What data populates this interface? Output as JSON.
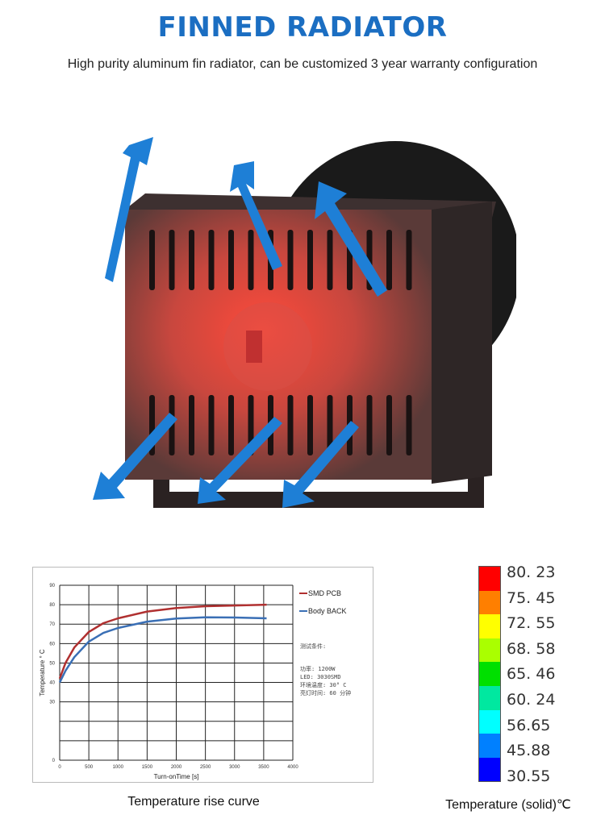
{
  "header": {
    "title": "FINNED RADIATOR",
    "subtitle": "High purity aluminum fin radiator, can be customized 3 year warranty configuration"
  },
  "colors": {
    "title": "#1b6ec2",
    "arrow": "#1e7fd6",
    "glow": "#ff3b2f",
    "body": "#3a2a2a"
  },
  "product_image": {
    "description_icons": [
      "airflow-arrow-icon"
    ]
  },
  "chart_data": {
    "type": "line",
    "title": "",
    "xlabel": "Turn-onTime [s]",
    "ylabel": "Temperature ° C",
    "xlim": [
      0,
      4000
    ],
    "ylim": [
      0,
      90
    ],
    "xticks": [
      0,
      500,
      1000,
      1500,
      2000,
      2500,
      3000,
      3500,
      4000
    ],
    "yticks": [
      0,
      30,
      40,
      50,
      60,
      70,
      80,
      90
    ],
    "grid": true,
    "legend": "right",
    "x": [
      0,
      100,
      250,
      500,
      750,
      1000,
      1500,
      2000,
      2500,
      3000,
      3550
    ],
    "series": [
      {
        "name": "SMD PCB",
        "color": "#b03030",
        "values": [
          42,
          50,
          58,
          66,
          70.5,
          73,
          76.5,
          78.3,
          79.2,
          79.6,
          80
        ]
      },
      {
        "name": "Body BACK",
        "color": "#3a6fb5",
        "values": [
          40,
          46,
          53,
          61,
          65.5,
          68,
          71.3,
          72.9,
          73.5,
          73.4,
          73
        ]
      }
    ],
    "annotations": [
      "测试条件:",
      "功率: 1200W",
      "LED: 3030SMD",
      "环境温度: 30° C",
      "亮灯时间: 60 分钟"
    ]
  },
  "captions": {
    "chart": "Temperature rise curve",
    "scale": "Temperature (solid)℃"
  },
  "color_scale": [
    {
      "label": "80. 23",
      "color": "#ff0000"
    },
    {
      "label": "75. 45",
      "color": "#ff7f00"
    },
    {
      "label": "72. 55",
      "color": "#ffff00"
    },
    {
      "label": "68. 58",
      "color": "#aaff00"
    },
    {
      "label": "65. 46",
      "color": "#00e000"
    },
    {
      "label": "60. 24",
      "color": "#00e8a0"
    },
    {
      "label": "56.65",
      "color": "#00ffff"
    },
    {
      "label": "45.88",
      "color": "#0080ff"
    },
    {
      "label": "30.55",
      "color": "#0000ff"
    }
  ]
}
